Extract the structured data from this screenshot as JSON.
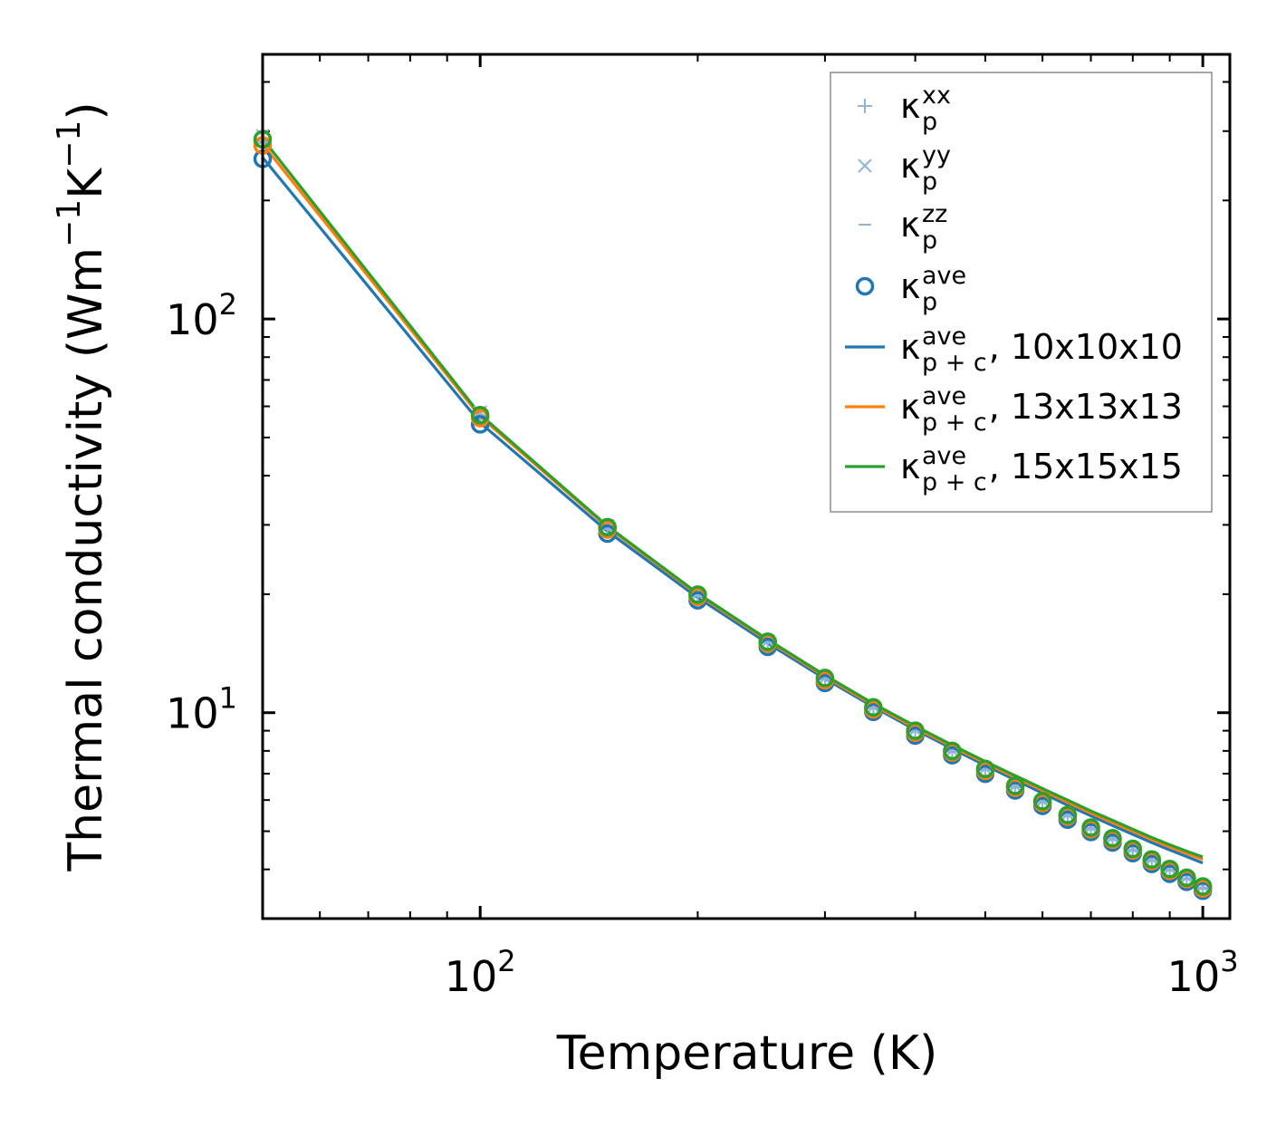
{
  "chart_data": {
    "type": "line",
    "xlabel": "Temperature (K)",
    "ylabel_parts": [
      "Thermal conductivity (Wm",
      "−1",
      "K",
      "−1",
      ")"
    ],
    "xscale": "log",
    "yscale": "log",
    "xlim": [
      50,
      1090
    ],
    "ylim": [
      3,
      470
    ],
    "x_tick_labels": [
      {
        "value": 100,
        "base": "10",
        "exp": "2"
      },
      {
        "value": 1000,
        "base": "10",
        "exp": "3"
      }
    ],
    "y_tick_labels": [
      {
        "value": 10,
        "base": "10",
        "exp": "1"
      },
      {
        "value": 100,
        "base": "10",
        "exp": "2"
      }
    ],
    "temperatures": [
      50,
      100,
      150,
      200,
      250,
      300,
      350,
      400,
      450,
      500,
      550,
      600,
      650,
      700,
      750,
      800,
      850,
      900,
      950,
      1000
    ],
    "markers": [
      {
        "key": "kxx",
        "name": "κ_p^xx",
        "marker": "plus",
        "color": "#8fb4d4",
        "values": [
          283,
          57,
          29.5,
          19.9,
          15.1,
          12.2,
          10.3,
          9.0,
          8.0,
          7.2,
          6.5,
          5.95,
          5.5,
          5.1,
          4.8,
          4.5,
          4.23,
          4.0,
          3.8,
          3.6
        ]
      },
      {
        "key": "kyy",
        "name": "κ_p^yy",
        "marker": "x",
        "color": "#8fb4d4",
        "values": [
          292,
          58,
          29.8,
          20.0,
          15.2,
          12.25,
          10.35,
          9.05,
          8.02,
          7.22,
          6.52,
          5.97,
          5.52,
          5.12,
          4.82,
          4.52,
          4.25,
          4.02,
          3.82,
          3.62
        ]
      },
      {
        "key": "kzz",
        "name": "κ_p^zz",
        "marker": "dash",
        "color": "#8fb4d4",
        "values": [
          280,
          56.5,
          29.3,
          19.8,
          15.05,
          12.15,
          10.25,
          8.95,
          7.95,
          7.15,
          6.45,
          5.9,
          5.45,
          5.05,
          4.75,
          4.45,
          4.2,
          3.97,
          3.77,
          3.57
        ]
      },
      {
        "key": "kave",
        "name": "κ_p^ave (10x10x10)",
        "marker": "circle",
        "color": "#1f77b4",
        "values": [
          255,
          54,
          28.5,
          19.3,
          14.7,
          11.9,
          10.05,
          8.75,
          7.8,
          7.0,
          6.35,
          5.8,
          5.35,
          4.98,
          4.68,
          4.4,
          4.13,
          3.9,
          3.72,
          3.53
        ]
      },
      {
        "key": "kave13",
        "name": "κ_p^ave (13x13x13)",
        "marker": "circle",
        "color": "#ff7f0e",
        "values": [
          276,
          56,
          29.2,
          19.7,
          15.0,
          12.1,
          10.2,
          8.9,
          7.93,
          7.12,
          6.45,
          5.9,
          5.45,
          5.06,
          4.76,
          4.47,
          4.2,
          3.97,
          3.78,
          3.58
        ]
      },
      {
        "key": "kave15",
        "name": "κ_p^ave (15x15x15)",
        "marker": "circle",
        "color": "#2ca02c",
        "values": [
          286,
          57,
          29.6,
          19.95,
          15.15,
          12.25,
          10.32,
          9.0,
          8.0,
          7.2,
          6.52,
          5.96,
          5.5,
          5.11,
          4.8,
          4.51,
          4.24,
          4.01,
          3.81,
          3.62
        ]
      }
    ],
    "series": [
      {
        "key": "l10",
        "name": "κ_p+c^ave, 10x10x10",
        "color": "#1f77b4",
        "values": [
          257,
          54.5,
          28.9,
          19.6,
          15.0,
          12.2,
          10.35,
          9.05,
          8.1,
          7.35,
          6.75,
          6.25,
          5.82,
          5.47,
          5.17,
          4.91,
          4.68,
          4.48,
          4.31,
          4.15
        ]
      },
      {
        "key": "l13",
        "name": "κ_p+c^ave, 13x13x13",
        "color": "#ff7f0e",
        "values": [
          278,
          56.5,
          29.6,
          19.95,
          15.25,
          12.35,
          10.45,
          9.15,
          8.2,
          7.45,
          6.85,
          6.35,
          5.92,
          5.56,
          5.26,
          5.0,
          4.76,
          4.56,
          4.39,
          4.24
        ]
      },
      {
        "key": "l15",
        "name": "κ_p+c^ave, 15x15x15",
        "color": "#2ca02c",
        "values": [
          287,
          57.2,
          29.8,
          20.1,
          15.35,
          12.45,
          10.55,
          9.25,
          8.28,
          7.52,
          6.92,
          6.42,
          6.0,
          5.63,
          5.33,
          5.06,
          4.82,
          4.62,
          4.45,
          4.3
        ]
      }
    ],
    "legend": {
      "position": "top-right",
      "entries": [
        {
          "key": "kxx",
          "symbol": "plus",
          "color": "#8fb4d4",
          "base": "κ",
          "sup": "xx",
          "sub": "p",
          "suffix": ""
        },
        {
          "key": "kyy",
          "symbol": "x",
          "color": "#8fb4d4",
          "base": "κ",
          "sup": "yy",
          "sub": "p",
          "suffix": ""
        },
        {
          "key": "kzz",
          "symbol": "dash",
          "color": "#8fb4d4",
          "base": "κ",
          "sup": "zz",
          "sub": "p",
          "suffix": ""
        },
        {
          "key": "kave",
          "symbol": "circle",
          "color": "#1f77b4",
          "base": "κ",
          "sup": "ave",
          "sub": "p",
          "suffix": ""
        },
        {
          "key": "l10",
          "symbol": "line",
          "color": "#1f77b4",
          "base": "κ",
          "sup": "ave",
          "sub": "p + c",
          "suffix": ", 10x10x10"
        },
        {
          "key": "l13",
          "symbol": "line",
          "color": "#ff7f0e",
          "base": "κ",
          "sup": "ave",
          "sub": "p + c",
          "suffix": ", 13x13x13"
        },
        {
          "key": "l15",
          "symbol": "line",
          "color": "#2ca02c",
          "base": "κ",
          "sup": "ave",
          "sub": "p + c",
          "suffix": ", 15x15x15"
        }
      ]
    }
  }
}
